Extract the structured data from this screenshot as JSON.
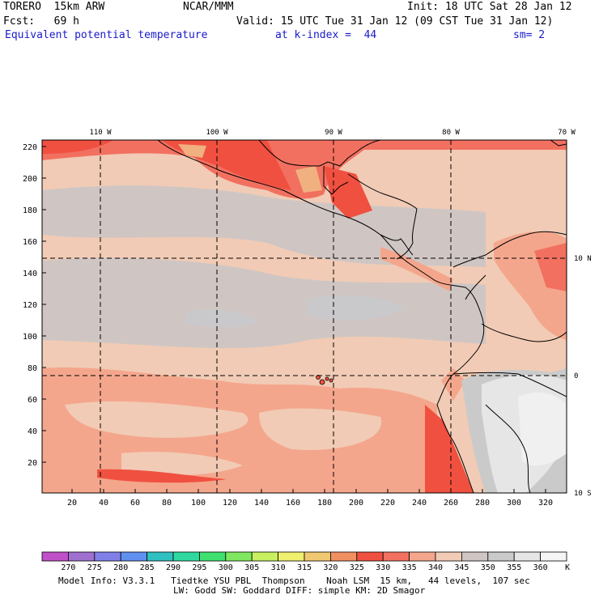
{
  "header": {
    "model": "TORERO  15km ARW",
    "org": "NCAR/MMM",
    "init": "Init: 18 UTC Sat 28 Jan 12",
    "fcst": "Fcst:   69 h",
    "valid": "Valid: 15 UTC Tue 31 Jan 12 (09 CST Tue 31 Jan 12)",
    "field": "Equivalent potential temperature",
    "level": "at k-index =  44",
    "smooth": "sm= 2"
  },
  "map": {
    "lon_labels": [
      "110 W",
      "100 W",
      "90 W",
      "80 W",
      "70 W"
    ],
    "lat_labels": [
      "10 N",
      "0",
      "10 S"
    ],
    "y_ticks": [
      "220",
      "200",
      "180",
      "160",
      "140",
      "120",
      "100",
      "80",
      "60",
      "40",
      "20"
    ],
    "x_ticks": [
      "20",
      "40",
      "60",
      "80",
      "100",
      "120",
      "140",
      "160",
      "180",
      "200",
      "220",
      "240",
      "260",
      "280",
      "300",
      "320"
    ]
  },
  "colorbar": {
    "labels": [
      "270",
      "275",
      "280",
      "285",
      "290",
      "295",
      "300",
      "305",
      "310",
      "315",
      "320",
      "325",
      "330",
      "335",
      "340",
      "345",
      "350",
      "355",
      "360"
    ],
    "unit": "K",
    "colors": [
      "#c050c8",
      "#a070d0",
      "#8080e8",
      "#6090f0",
      "#30c0c0",
      "#30d8a0",
      "#40e070",
      "#80e860",
      "#c8f060",
      "#f0f070",
      "#f0c870",
      "#f09060",
      "#f05040",
      "#f27060",
      "#f4a68c",
      "#f1cbb5",
      "#cfc6c4",
      "#cacaca",
      "#e6e6e6",
      "#f5f5f5"
    ]
  },
  "footer": {
    "line1": "Model Info: V3.3.1   Tiedtke YSU PBL  Thompson    Noah LSM  15 km,   44 levels,  107 sec",
    "line2": "LW: Godd SW: Goddard DIFF: simple KM: 2D Smagor"
  }
}
